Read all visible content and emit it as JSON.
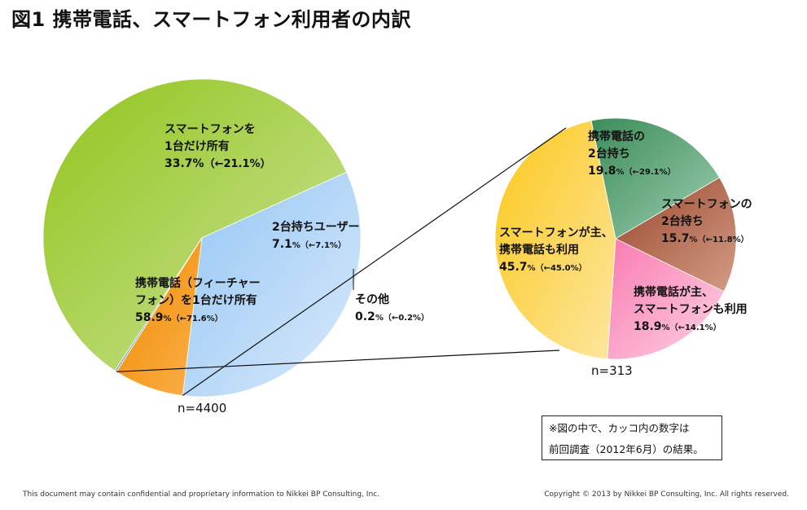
{
  "title": "図1 携帯電話、スマートフォン利用者の内訳",
  "note": {
    "line1": "※図の中で、カッコ内の数字は",
    "line2": "前回調査（2012年6月）の結果。"
  },
  "footer": {
    "left": "This document may contain confidential and proprietary information to Nikkei BP Consulting, Inc.",
    "right": "Copyright © 2013 by Nikkei BP Consulting, Inc. All rights reserved."
  },
  "colors": {
    "phone_one": "#b5d96a",
    "smart_one": "#bcd9f5",
    "both": "#f5960c",
    "other": "#8fa8c8",
    "smart_main": "#fbd45a",
    "phone_two": "#5aa87a",
    "smart_two": "#b46a50",
    "phone_main": "#fba7c8"
  },
  "chart_data": [
    {
      "type": "pie",
      "n_label": "n=4400",
      "slices": [
        {
          "name": "携帯電話（フィーチャーフォン）を1台だけ所有",
          "label_lines": [
            "携帯電話（フィーチャー",
            "フォン）を1台だけ所有"
          ],
          "value": 58.9,
          "value_text": "58.9",
          "prev_text": "（←71.6%）",
          "color": "#b5d96a"
        },
        {
          "name": "スマートフォンを1台だけ所有",
          "label_lines": [
            "スマートフォンを",
            "1台だけ所有"
          ],
          "value": 33.7,
          "value_text": "33.7%",
          "prev_text": "（←21.1%）",
          "color": "#bcd9f5"
        },
        {
          "name": "2台持ちユーザー",
          "label_lines": [
            "2台持ちユーザー"
          ],
          "value": 7.1,
          "value_text": "7.1",
          "prev_text": "（←7.1%）",
          "color": "#f5960c"
        },
        {
          "name": "その他",
          "label_lines": [
            "その他"
          ],
          "value": 0.2,
          "value_text": "0.2",
          "prev_text": "（←0.2%）",
          "color": "#8fa8c8"
        }
      ]
    },
    {
      "type": "pie",
      "n_label": "n=313",
      "breakdown_of": "2台持ちユーザー",
      "slices": [
        {
          "name": "携帯電話の2台持ち",
          "label_lines": [
            "携帯電話の",
            "2台持ち"
          ],
          "value": 19.8,
          "value_text": "19.8",
          "prev_text": "（←29.1%）",
          "color": "#5aa87a"
        },
        {
          "name": "スマートフォンの2台持ち",
          "label_lines": [
            "スマートフォンの",
            "2台持ち"
          ],
          "value": 15.7,
          "value_text": "15.7",
          "prev_text": "（←11.8%）",
          "color": "#b46a50"
        },
        {
          "name": "携帯電話が主、スマートフォンも利用",
          "label_lines": [
            "携帯電話が主、",
            "スマートフォンも利用"
          ],
          "value": 18.9,
          "value_text": "18.9",
          "prev_text": "（←14.1%）",
          "color": "#fba7c8"
        },
        {
          "name": "スマートフォンが主、携帯電話も利用",
          "label_lines": [
            "スマートフォンが主、",
            "携帯電話も利用"
          ],
          "value": 45.7,
          "value_text": "45.7",
          "prev_text": "（←45.0%）",
          "color": "#fbd45a"
        }
      ]
    }
  ]
}
